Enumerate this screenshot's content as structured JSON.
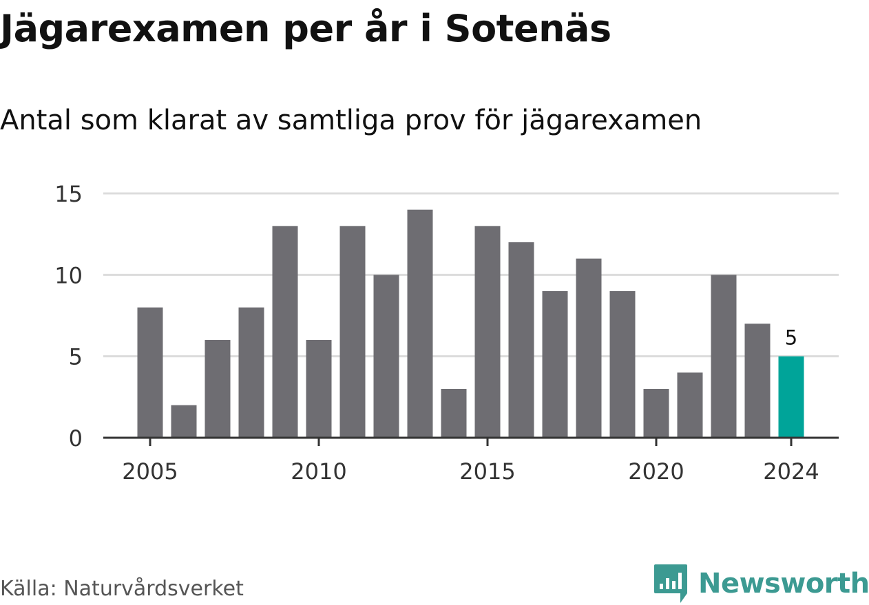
{
  "header": {
    "title": "Jägarexamen per år i Sotenäs",
    "subtitle": "Antal som klarat av samtliga prov för jägarexamen"
  },
  "footer": {
    "source": "Källa: Naturvårdsverket",
    "brand": "Newsworthy",
    "brand_icon": "bar-chart-logo-icon",
    "brand_color": "#3c9a92"
  },
  "chart_data": {
    "type": "bar",
    "title": "Jägarexamen per år i Sotenäs",
    "subtitle": "Antal som klarat av samtliga prov för jägarexamen",
    "xlabel": "",
    "ylabel": "",
    "categories": [
      2005,
      2006,
      2007,
      2008,
      2009,
      2010,
      2011,
      2012,
      2013,
      2014,
      2015,
      2016,
      2017,
      2018,
      2019,
      2020,
      2021,
      2022,
      2023,
      2024
    ],
    "values": [
      8,
      2,
      6,
      8,
      13,
      6,
      13,
      10,
      14,
      3,
      13,
      12,
      9,
      11,
      9,
      3,
      4,
      10,
      7,
      5
    ],
    "ylim": [
      0,
      15
    ],
    "yticks": [
      0,
      5,
      10,
      15
    ],
    "xticks": [
      2005,
      2010,
      2015,
      2020,
      2024
    ],
    "grid": true,
    "bar_color": "#6e6d72",
    "highlight_color": "#00a499",
    "highlight_category": 2024,
    "data_labels": [
      {
        "category": 2024,
        "label": "5"
      }
    ]
  }
}
